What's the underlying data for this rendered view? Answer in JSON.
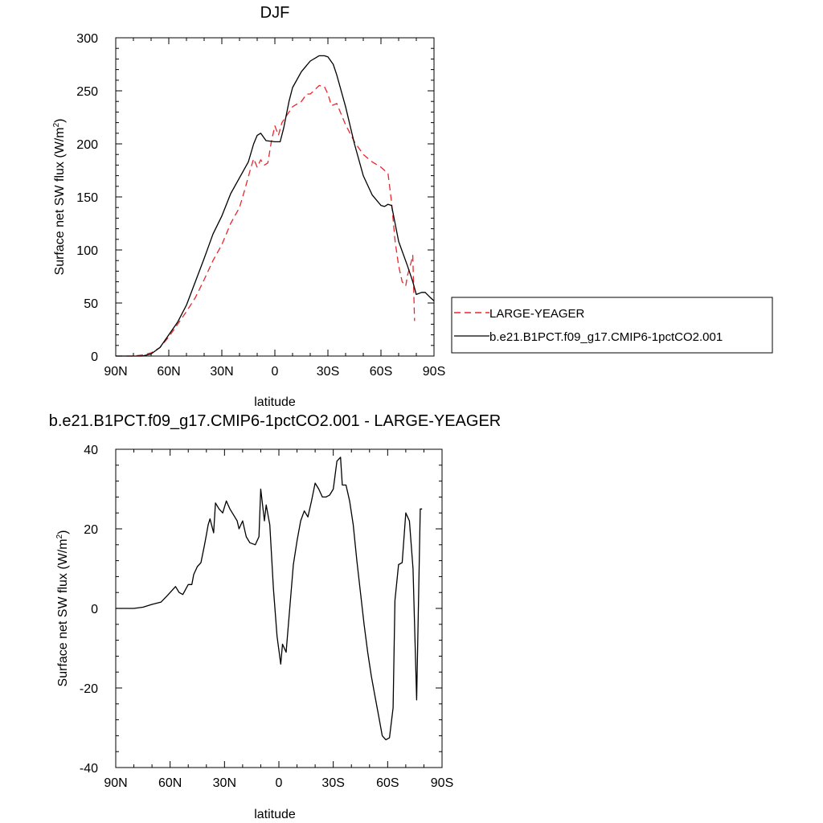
{
  "chart_data": [
    {
      "type": "line",
      "title": "DJF",
      "xlabel": "latitude",
      "ylabel": "Surface net SW flux (W/m",
      "ylabel_sup": "2",
      "ylabel_close": ")",
      "xlim": [
        -90,
        90
      ],
      "ylim": [
        0,
        300
      ],
      "xticks": [
        -90,
        -60,
        -30,
        0,
        30,
        60,
        90
      ],
      "xtick_labels": [
        "90N",
        "60N",
        "30N",
        "0",
        "30S",
        "60S",
        "90S"
      ],
      "yticks": [
        0,
        50,
        100,
        150,
        200,
        250,
        300
      ],
      "ytick_labels": [
        "0",
        "50",
        "100",
        "150",
        "200",
        "250",
        "300"
      ],
      "legend": "right",
      "series": [
        {
          "name": "LARGE-YEAGER",
          "color": "#e8262b",
          "dash": "dashed",
          "x": [
            -90,
            -80,
            -75,
            -70,
            -65,
            -60,
            -55,
            -50,
            -45,
            -40,
            -35,
            -30,
            -25,
            -20,
            -17,
            -14,
            -12,
            -10,
            -8,
            -6,
            -4,
            -2,
            0,
            2,
            4,
            6,
            10,
            15,
            18,
            20,
            22,
            25,
            28,
            30,
            32,
            35,
            40,
            45,
            50,
            55,
            60,
            62,
            64,
            66,
            68,
            70,
            72,
            74,
            75,
            77,
            78,
            79
          ],
          "y": [
            0,
            0,
            1,
            3,
            8,
            18,
            30,
            42,
            55,
            72,
            90,
            105,
            125,
            140,
            157,
            175,
            186,
            178,
            185,
            180,
            182,
            202,
            217,
            208,
            220,
            225,
            235,
            240,
            247,
            247,
            250,
            255,
            254,
            247,
            236,
            238,
            218,
            202,
            190,
            183,
            178,
            175,
            172,
            145,
            108,
            85,
            70,
            66,
            76,
            88,
            95,
            33
          ]
        },
        {
          "name": "b.e21.B1PCT.f09_g17.CMIP6-1pctCO2.001",
          "color": "#000000",
          "dash": "solid",
          "x": [
            -90,
            -80,
            -75,
            -70,
            -65,
            -60,
            -55,
            -50,
            -45,
            -40,
            -35,
            -30,
            -25,
            -20,
            -15,
            -12,
            -10,
            -8,
            -5,
            0,
            3,
            5,
            8,
            10,
            15,
            20,
            25,
            28,
            30,
            33,
            35,
            40,
            45,
            50,
            55,
            60,
            62,
            64,
            66,
            68,
            70,
            75,
            78,
            80,
            83,
            85,
            88,
            90
          ],
          "y": [
            0,
            0,
            0,
            2,
            8,
            20,
            32,
            48,
            70,
            92,
            115,
            132,
            153,
            168,
            183,
            200,
            208,
            210,
            203,
            202,
            202,
            215,
            240,
            253,
            268,
            278,
            283,
            283,
            282,
            275,
            265,
            235,
            200,
            170,
            152,
            142,
            141,
            143,
            142,
            125,
            108,
            85,
            70,
            58,
            60,
            60,
            55,
            52
          ]
        }
      ]
    },
    {
      "type": "line",
      "title": "b.e21.B1PCT.f09_g17.CMIP6-1pctCO2.001 - LARGE-YEAGER",
      "xlabel": "latitude",
      "ylabel": "Surface net SW flux (W/m",
      "ylabel_sup": "2",
      "ylabel_close": ")",
      "xlim": [
        -90,
        90
      ],
      "ylim": [
        -40,
        40
      ],
      "xticks": [
        -90,
        -60,
        -30,
        0,
        30,
        60,
        90
      ],
      "xtick_labels": [
        "90N",
        "60N",
        "30N",
        "0",
        "30S",
        "60S",
        "90S"
      ],
      "yticks": [
        -40,
        -20,
        0,
        20,
        40
      ],
      "ytick_labels": [
        "-40",
        "-20",
        "0",
        "20",
        "40"
      ],
      "series": [
        {
          "color": "#000000",
          "dash": "solid",
          "x": [
            -90,
            -80,
            -75,
            -70,
            -65,
            -62,
            -60,
            -57,
            -55,
            -53,
            -50,
            -48,
            -47,
            -45,
            -43,
            -41,
            -40,
            -39,
            -38,
            -36,
            -35,
            -33,
            -31,
            -29,
            -28,
            -27,
            -25,
            -23,
            -22,
            -20,
            -18,
            -16,
            -13,
            -12,
            -11,
            -10,
            -8,
            -7,
            -5,
            -3,
            -1,
            1,
            2,
            4,
            6,
            8,
            10,
            12,
            14,
            16,
            18,
            20,
            22,
            24,
            26,
            28,
            30,
            32,
            34,
            35,
            37,
            39,
            41,
            43,
            45,
            47,
            49,
            51,
            53,
            55,
            57,
            59,
            61,
            63,
            64,
            66,
            68,
            70,
            72,
            74,
            76,
            78,
            79
          ],
          "y": [
            0,
            0,
            0.3,
            1,
            1.6,
            3,
            4,
            5.5,
            4,
            3.5,
            6,
            6,
            8.5,
            10.5,
            11.5,
            16,
            18.5,
            21,
            22.5,
            19,
            26.5,
            25,
            24,
            27,
            26,
            25,
            23.5,
            22,
            20,
            22,
            18,
            16.5,
            16,
            17,
            18,
            30,
            22,
            26,
            21,
            5,
            -7,
            -14,
            -9,
            -11,
            0,
            11,
            17,
            22,
            24.5,
            23,
            27,
            31.5,
            30,
            28,
            28,
            28.5,
            30,
            37,
            38,
            31,
            31,
            27,
            21,
            12,
            4,
            -4,
            -11,
            -17,
            -22,
            -27,
            -32,
            -33,
            -32.5,
            -25,
            2,
            11,
            11.5,
            24,
            22,
            10,
            -23,
            25,
            25
          ]
        }
      ]
    }
  ]
}
